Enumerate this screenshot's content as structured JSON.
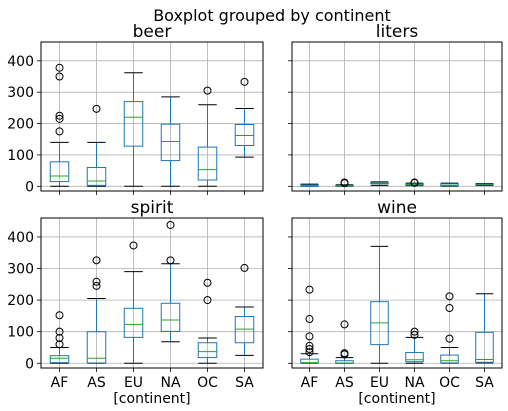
{
  "chart_data": {
    "type": "boxplot",
    "title": "Boxplot grouped by continent",
    "categories": [
      "AF",
      "AS",
      "EU",
      "NA",
      "OC",
      "SA"
    ],
    "xlabel": "[continent]",
    "ylim": [
      -15,
      460
    ],
    "yticks": [
      0,
      100,
      200,
      300,
      400
    ],
    "grid": true,
    "sharey": true,
    "colors": {
      "box": "#1f77b4",
      "median": "#2ca02c",
      "whisker": "#000000",
      "flier": "#000000",
      "grid": "#b0b0b0"
    },
    "subplots": [
      {
        "title": "beer",
        "boxes": [
          {
            "min": 0,
            "q1": 15,
            "median": 33,
            "q3": 78,
            "max": 140,
            "outliers": [
              175,
              215,
              225,
              350,
              378
            ]
          },
          {
            "min": 0,
            "q1": 3,
            "median": 17,
            "q3": 60,
            "max": 140,
            "outliers": [
              247
            ]
          },
          {
            "min": 0,
            "q1": 128,
            "median": 220,
            "q3": 270,
            "max": 362,
            "outliers": []
          },
          {
            "min": 0,
            "q1": 82,
            "median": 143,
            "q3": 198,
            "max": 285,
            "outliers": []
          },
          {
            "min": 0,
            "q1": 20,
            "median": 53,
            "q3": 125,
            "max": 260,
            "outliers": [
              305
            ]
          },
          {
            "min": 93,
            "q1": 130,
            "median": 162,
            "q3": 197,
            "max": 248,
            "outliers": [
              333
            ]
          }
        ]
      },
      {
        "title": "liters",
        "boxes": [
          {
            "min": 0,
            "q1": 0.5,
            "median": 2.5,
            "q3": 4.5,
            "max": 7,
            "outliers": []
          },
          {
            "min": 0,
            "q1": 0.5,
            "median": 1.5,
            "q3": 3,
            "max": 5,
            "outliers": [
              10,
              12
            ]
          },
          {
            "min": 3,
            "q1": 8,
            "median": 10,
            "q3": 12,
            "max": 14,
            "outliers": []
          },
          {
            "min": 2,
            "q1": 3.5,
            "median": 5.5,
            "q3": 8,
            "max": 10,
            "outliers": [
              11,
              12
            ]
          },
          {
            "min": 0,
            "q1": 1.5,
            "median": 3,
            "q3": 8,
            "max": 10,
            "outliers": []
          },
          {
            "min": 3,
            "q1": 5,
            "median": 6.5,
            "q3": 7.5,
            "max": 9,
            "outliers": []
          }
        ]
      },
      {
        "title": "spirit",
        "boxes": [
          {
            "min": 0,
            "q1": 2,
            "median": 16,
            "q3": 24,
            "max": 50,
            "outliers": [
              60,
              80,
              100,
              152
            ]
          },
          {
            "min": 0,
            "q1": 1,
            "median": 16,
            "q3": 100,
            "max": 205,
            "outliers": [
              245,
              258,
              326
            ]
          },
          {
            "min": 0,
            "q1": 82,
            "median": 123,
            "q3": 174,
            "max": 290,
            "outliers": [
              373
            ]
          },
          {
            "min": 68,
            "q1": 101,
            "median": 137,
            "q3": 190,
            "max": 315,
            "outliers": [
              326,
              438
            ]
          },
          {
            "min": 0,
            "q1": 18,
            "median": 37,
            "q3": 65,
            "max": 80,
            "outliers": [
              200,
              255
            ]
          },
          {
            "min": 25,
            "q1": 65,
            "median": 108,
            "q3": 148,
            "max": 178,
            "outliers": [
              302
            ]
          }
        ]
      },
      {
        "title": "wine",
        "boxes": [
          {
            "min": 0,
            "q1": 1,
            "median": 2,
            "q3": 13,
            "max": 30,
            "outliers": [
              35,
              45,
              55,
              85,
              140,
              233
            ]
          },
          {
            "min": 0,
            "q1": 0,
            "median": 1,
            "q3": 8,
            "max": 18,
            "outliers": [
              28,
              32,
              123
            ]
          },
          {
            "min": 0,
            "q1": 59,
            "median": 128,
            "q3": 195,
            "max": 370,
            "outliers": []
          },
          {
            "min": 0,
            "q1": 5,
            "median": 11,
            "q3": 34,
            "max": 82,
            "outliers": [
              90,
              100
            ]
          },
          {
            "min": 0,
            "q1": 1,
            "median": 8,
            "q3": 26,
            "max": 50,
            "outliers": [
              78,
              175,
              212
            ]
          },
          {
            "min": 1,
            "q1": 3,
            "median": 12,
            "q3": 98,
            "max": 220,
            "outliers": []
          }
        ]
      }
    ]
  }
}
